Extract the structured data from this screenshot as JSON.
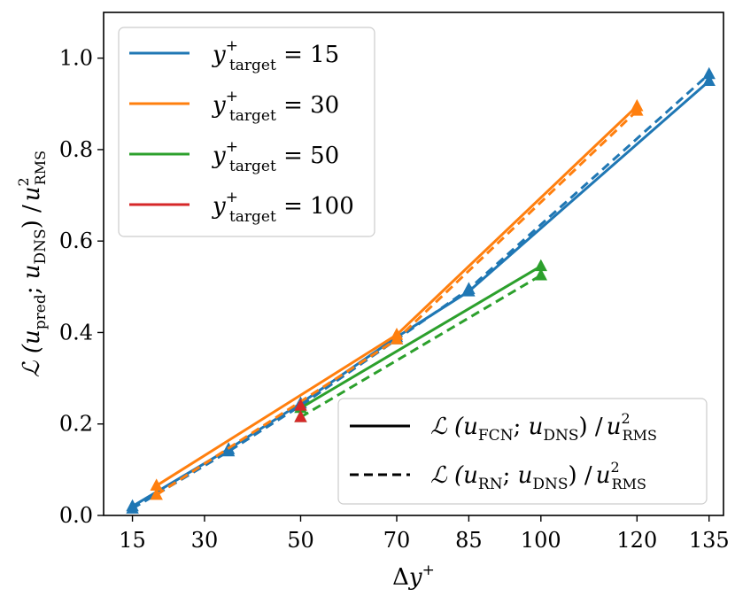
{
  "chart_data": {
    "type": "line",
    "xlabel": "Δy⁺",
    "ylabel": "ℒ (u_pred; u_DNS) / u²_RMS",
    "x_ticks": [
      15,
      30,
      50,
      70,
      85,
      100,
      120,
      135
    ],
    "y_ticks": [
      0.0,
      0.2,
      0.4,
      0.6,
      0.8,
      1.0
    ],
    "xlim": [
      9,
      138
    ],
    "ylim": [
      0.0,
      1.1
    ],
    "series": [
      {
        "name": "y⁺_target = 15",
        "color": "#1f77b4",
        "fcn": {
          "x": [
            15,
            35,
            50,
            70,
            85,
            135
          ],
          "y": [
            0.02,
            0.145,
            0.245,
            0.39,
            0.49,
            0.95
          ]
        },
        "rn": {
          "x": [
            15,
            35,
            50,
            70,
            85,
            135
          ],
          "y": [
            0.015,
            0.14,
            0.24,
            0.385,
            0.495,
            0.965
          ]
        }
      },
      {
        "name": "y⁺_target = 30",
        "color": "#ff7f0e",
        "fcn": {
          "x": [
            20,
            70,
            120
          ],
          "y": [
            0.065,
            0.395,
            0.895
          ]
        },
        "rn": {
          "x": [
            20,
            70,
            120
          ],
          "y": [
            0.045,
            0.385,
            0.885
          ]
        }
      },
      {
        "name": "y⁺_target = 50",
        "color": "#2ca02c",
        "fcn": {
          "x": [
            50,
            100
          ],
          "y": [
            0.235,
            0.545
          ]
        },
        "rn": {
          "x": [
            50,
            100
          ],
          "y": [
            0.215,
            0.525
          ]
        }
      },
      {
        "name": "y⁺_target = 100",
        "color": "#d62728",
        "fcn": {
          "x": [
            50
          ],
          "y": [
            0.24
          ]
        },
        "rn": {
          "x": [
            50
          ],
          "y": [
            0.215
          ]
        }
      }
    ],
    "legend_series": {
      "placement": "top-left",
      "entries": [
        {
          "base": "y",
          "sup": "+",
          "sub": "target",
          "tail": " = 15",
          "color": "#1f77b4"
        },
        {
          "base": "y",
          "sup": "+",
          "sub": "target",
          "tail": " = 30",
          "color": "#ff7f0e"
        },
        {
          "base": "y",
          "sup": "+",
          "sub": "target",
          "tail": " = 50",
          "color": "#2ca02c"
        },
        {
          "base": "y",
          "sup": "+",
          "sub": "target",
          "tail": " = 100",
          "color": "#d62728"
        }
      ]
    },
    "legend_style": {
      "placement": "bottom-right",
      "entries": [
        {
          "style": "solid",
          "text": "ℒ (u_FCN; u_DNS) / u²_RMS"
        },
        {
          "style": "dashed",
          "text": "ℒ (u_RN; u_DNS) / u²_RMS"
        }
      ]
    },
    "grid": false
  }
}
